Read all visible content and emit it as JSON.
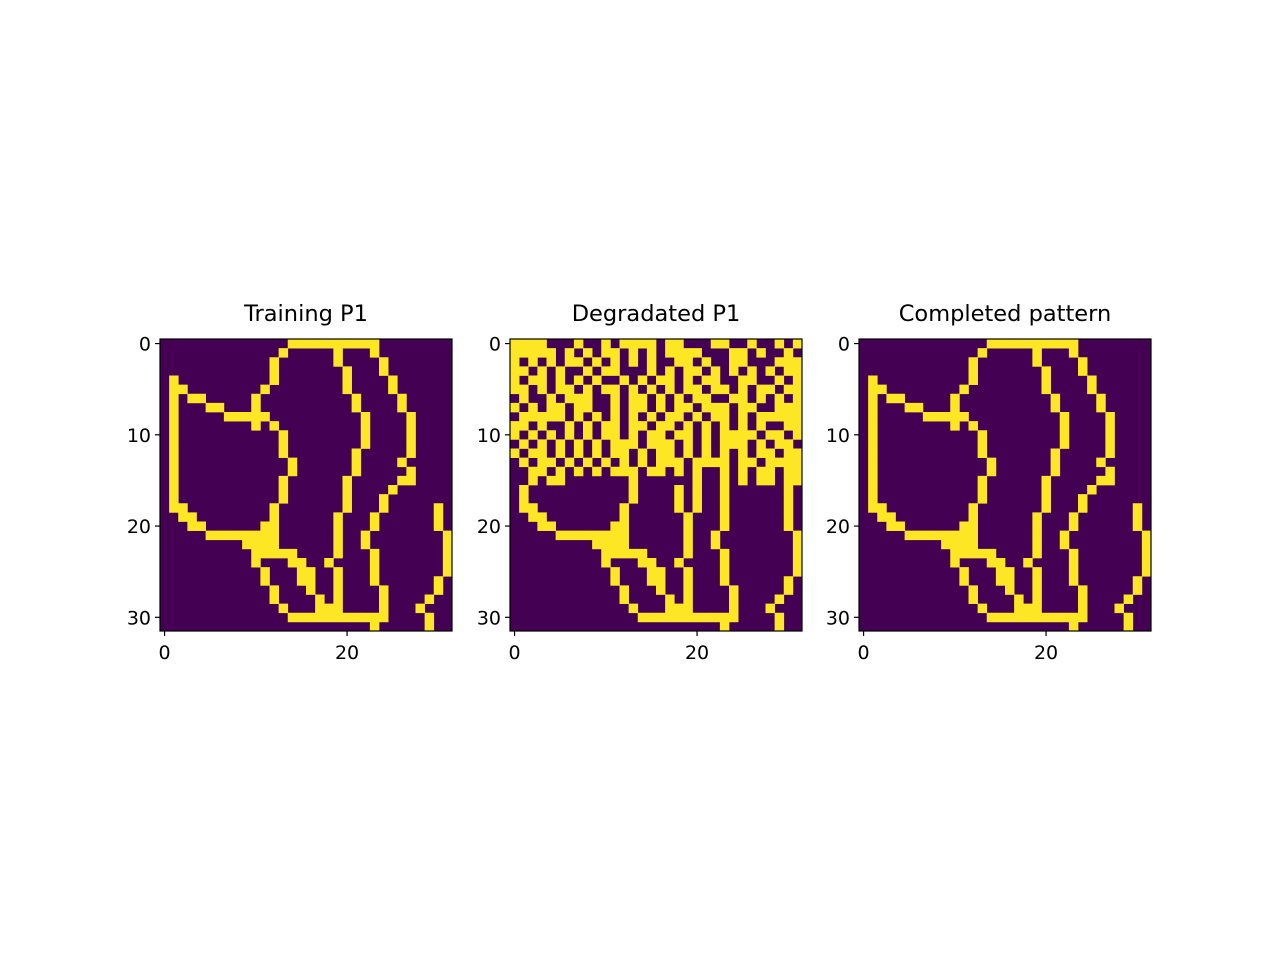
{
  "chart_data": [
    {
      "type": "heatmap",
      "title": "Training P1",
      "x_ticks": [
        0,
        20
      ],
      "y_ticks": [
        0,
        10,
        20,
        30
      ],
      "xlim": [
        -0.5,
        31.5
      ],
      "ylim": [
        31.5,
        -0.5
      ],
      "colormap": {
        "0": "#440154",
        "1": "#fde725"
      },
      "grid": [
        "00000000000000111111111100000000",
        "00000000000001000001000100000000",
        "00000000000010000001000010000000",
        "00000000000010000000100010000000",
        "01000000000010000000100001000000",
        "01100000000100000000100001000000",
        "01011000001000000000010000100000",
        "01000110001000000000010000100000",
        "01000001111100000000001000010000",
        "01000000001010000000001000010000",
        "01000000000001000000001000010000",
        "01000000000001000000001000010000",
        "01000000000001000000010000010000",
        "01000000000000100000010000100000",
        "01000000000000100000010000010000",
        "01000000000001000000100000110000",
        "01000000000001000000100001000000",
        "01000000000001000000100010000000",
        "01100000000010000000100010000010",
        "00110000000010000001000100000010",
        "00011000000110000001000100000010",
        "00000111111110000001001000000001",
        "00000000011110000001001000000001",
        "00000000001111100001000100000001",
        "00000000001000110010000100000001",
        "00000000000100011001000100000001",
        "00000000000100011001000100000010",
        "00000000000010001001000010000010",
        "00000000000010000101000010000100",
        "00000000000001000111000010001000",
        "00000000000000111111111110000100",
        "00000000000000000000000100000100"
      ]
    },
    {
      "type": "heatmap",
      "title": "Degradated P1",
      "x_ticks": [
        0,
        20
      ],
      "y_ticks": [
        0,
        10,
        20,
        30
      ],
      "xlim": [
        -0.5,
        31.5
      ],
      "ylim": [
        31.5,
        -0.5
      ],
      "colormap": {
        "0": "#440154",
        "1": "#fde725"
      },
      "grid": [
        "11110001001011110110001100100101",
        "11111010101101010111100011010010",
        "10101011010101010011010011000111",
        "11010100101100010101101010101011",
        "10110101010010101101011001100101",
        "11010110101101010101101101011011",
        "01001011100101101010110011010101",
        "10101101100101101011011101100111",
        "01111101010101010110101101011111",
        "11010010101101101101010101010011",
        "10101010101101011011010111101101",
        "01010101010111011101010111010110",
        "10110101010110101101010101011011",
        "01011010101010101110111101101111",
        "00110101010111011010100101011011",
        "00101100000001000000100101011011",
        "01000000000001000010100100000010",
        "01000000000001000010100100000010",
        "01100000000010000010100100000010",
        "00110000000010000001000100000010",
        "00011000000110000001000100000010",
        "00000111111110000001001000000001",
        "00000000011110000001001000000001",
        "00000000001111100001000100000001",
        "00000000001000110010000100000001",
        "00000000000100011001000100000001",
        "00000000000100011001000100000010",
        "00000000000010001001000010000010",
        "00000000000010000101000010000100",
        "00000000000001000111000010001000",
        "00000000000000111111111110000100",
        "00000000000000000000000100000100"
      ]
    },
    {
      "type": "heatmap",
      "title": "Completed pattern",
      "x_ticks": [
        0,
        20
      ],
      "y_ticks": [
        0,
        10,
        20,
        30
      ],
      "xlim": [
        -0.5,
        31.5
      ],
      "ylim": [
        31.5,
        -0.5
      ],
      "colormap": {
        "0": "#440154",
        "1": "#fde725"
      },
      "grid": [
        "00000000000000111111111100000000",
        "00000000000001000001000100000000",
        "00000000000010000001000010000000",
        "00000000000010000000100010000000",
        "01000000000010000000100001000000",
        "01100000000100000000100001000000",
        "01011000001000000000010000100000",
        "01000110001000000000010000100000",
        "01000001111100000000001000010000",
        "01000000001010000000001000010000",
        "01000000000001000000001000010000",
        "01000000000001000000001000010000",
        "01000000000001000000010000010000",
        "01000000000000100000010000100000",
        "01000000000000100000010000010000",
        "01000000000001000000100000110000",
        "01000000000001000000100001000000",
        "01000000000001000000100010000000",
        "01100000000010000000100010000010",
        "00110000000010000001000100000010",
        "00011000000110000001000100000010",
        "00000111111110000001001000000001",
        "00000000011110000001001000000001",
        "00000000001111100001000100000001",
        "00000000001000110010000100000001",
        "00000000000100011001000100000001",
        "00000000000100011001000100000010",
        "00000000000010001001000010000010",
        "00000000000010000101000010000100",
        "00000000000001000111000010001000",
        "00000000000000111111111110000100",
        "00000000000000000000000100000100"
      ]
    }
  ]
}
